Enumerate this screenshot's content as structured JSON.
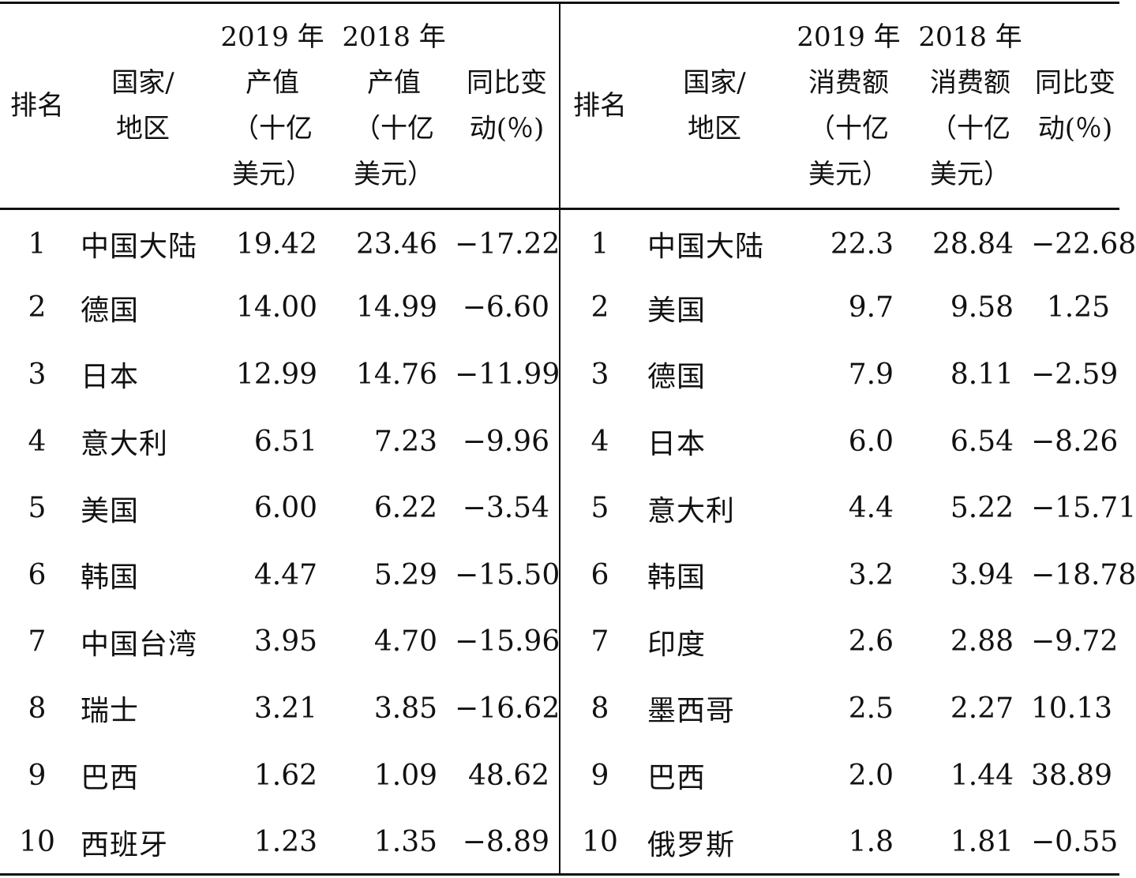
{
  "headers": {
    "left": {
      "rank": "排名",
      "region": [
        "国家/",
        "地区"
      ],
      "value2019": [
        "2019 年",
        "产值",
        "（十亿",
        "美元）"
      ],
      "value2018": [
        "2018 年",
        "产值",
        "（十亿",
        "美元）"
      ],
      "change": [
        "同比变",
        "动(％)"
      ]
    },
    "right": {
      "rank": "排名",
      "region": [
        "国家/",
        "地区"
      ],
      "value2019": [
        "2019 年",
        "消费额",
        "（十亿",
        "美元）"
      ],
      "value2018": [
        "2018 年",
        "消费额",
        "（十亿",
        "美元）"
      ],
      "change": [
        "同比变",
        "动(％)"
      ]
    }
  },
  "rows": [
    {
      "left": {
        "rank": "1",
        "region": "中国大陆",
        "v2019": "19.42",
        "v2018": "23.46",
        "change": "−17.22"
      },
      "right": {
        "rank": "1",
        "region": "中国大陆",
        "v2019": "22.3",
        "v2018": "28.84",
        "change": "−22.68"
      }
    },
    {
      "left": {
        "rank": "2",
        "region": "德国",
        "v2019": "14.00",
        "v2018": "14.99",
        "change": "−6.60"
      },
      "right": {
        "rank": "2",
        "region": "美国",
        "v2019": "9.7",
        "v2018": "9.58",
        "change": "1.25"
      }
    },
    {
      "left": {
        "rank": "3",
        "region": "日本",
        "v2019": "12.99",
        "v2018": "14.76",
        "change": "−11.99"
      },
      "right": {
        "rank": "3",
        "region": "德国",
        "v2019": "7.9",
        "v2018": "8.11",
        "change": "−2.59"
      }
    },
    {
      "left": {
        "rank": "4",
        "region": "意大利",
        "v2019": "6.51",
        "v2018": "7.23",
        "change": "−9.96"
      },
      "right": {
        "rank": "4",
        "region": "日本",
        "v2019": "6.0",
        "v2018": "6.54",
        "change": "−8.26"
      }
    },
    {
      "left": {
        "rank": "5",
        "region": "美国",
        "v2019": "6.00",
        "v2018": "6.22",
        "change": "−3.54"
      },
      "right": {
        "rank": "5",
        "region": "意大利",
        "v2019": "4.4",
        "v2018": "5.22",
        "change": "−15.71"
      }
    },
    {
      "left": {
        "rank": "6",
        "region": "韩国",
        "v2019": "4.47",
        "v2018": "5.29",
        "change": "−15.50"
      },
      "right": {
        "rank": "6",
        "region": "韩国",
        "v2019": "3.2",
        "v2018": "3.94",
        "change": "−18.78"
      }
    },
    {
      "left": {
        "rank": "7",
        "region": "中国台湾",
        "v2019": "3.95",
        "v2018": "4.70",
        "change": "−15.96"
      },
      "right": {
        "rank": "7",
        "region": "印度",
        "v2019": "2.6",
        "v2018": "2.88",
        "change": "−9.72"
      }
    },
    {
      "left": {
        "rank": "8",
        "region": "瑞士",
        "v2019": "3.21",
        "v2018": "3.85",
        "change": "−16.62"
      },
      "right": {
        "rank": "8",
        "region": "墨西哥",
        "v2019": "2.5",
        "v2018": "2.27",
        "change": "10.13"
      }
    },
    {
      "left": {
        "rank": "9",
        "region": "巴西",
        "v2019": "1.62",
        "v2018": "1.09",
        "change": "48.62"
      },
      "right": {
        "rank": "9",
        "region": "巴西",
        "v2019": "2.0",
        "v2018": "1.44",
        "change": "38.89"
      }
    },
    {
      "left": {
        "rank": "10",
        "region": "西班牙",
        "v2019": "1.23",
        "v2018": "1.35",
        "change": "−8.89"
      },
      "right": {
        "rank": "10",
        "region": "俄罗斯",
        "v2019": "1.8",
        "v2018": "1.81",
        "change": "−0.55"
      }
    }
  ]
}
